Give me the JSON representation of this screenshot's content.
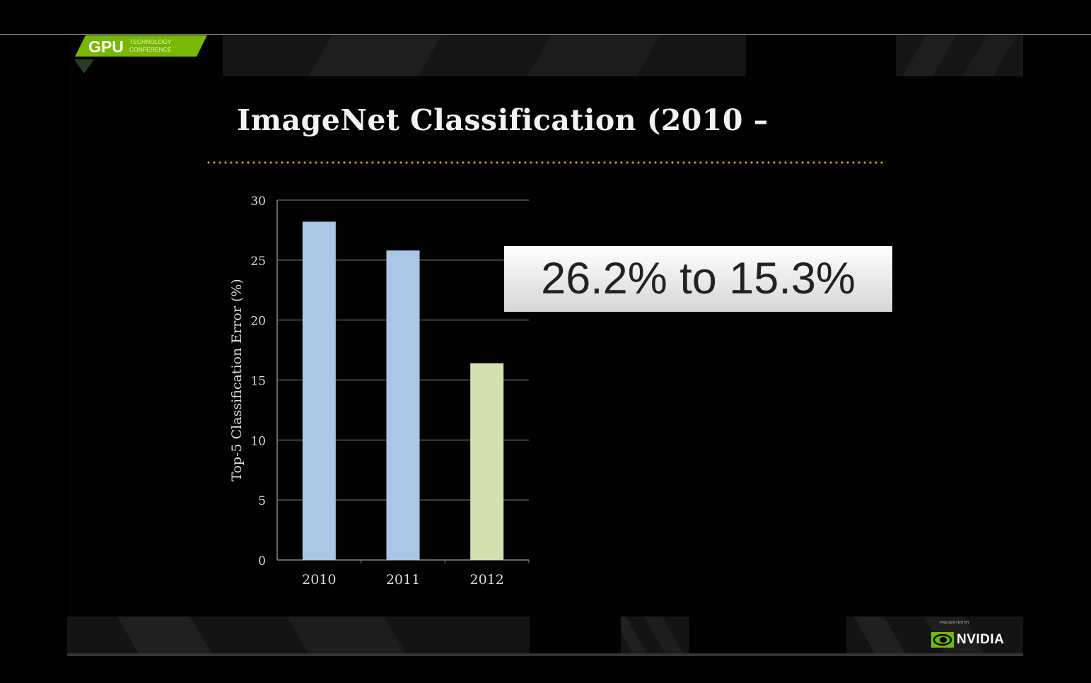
{
  "slide": {
    "title": "ImageNet Classification (2010 –",
    "callout": "26.2% to 15.3%",
    "logo": {
      "main": "GPU",
      "line1": "TECHNOLOGY",
      "line2": "CONFERENCE",
      "color": "#76b900"
    },
    "footer": {
      "presented_by": "PRESENTED BY",
      "brand": "NVIDIA"
    }
  },
  "chart_data": {
    "type": "bar",
    "categories": [
      "2010",
      "2011",
      "2012"
    ],
    "values": [
      28.2,
      25.8,
      16.4
    ],
    "colors": [
      "#a9c6e4",
      "#a9c6e4",
      "#d3e1b0"
    ],
    "ylabel": "Top-5 Classification Error (%)",
    "xlabel": "",
    "ylim": [
      0,
      30
    ],
    "yticks": [
      0,
      5,
      10,
      15,
      20,
      25,
      30
    ],
    "grid": true,
    "legend": "none"
  }
}
